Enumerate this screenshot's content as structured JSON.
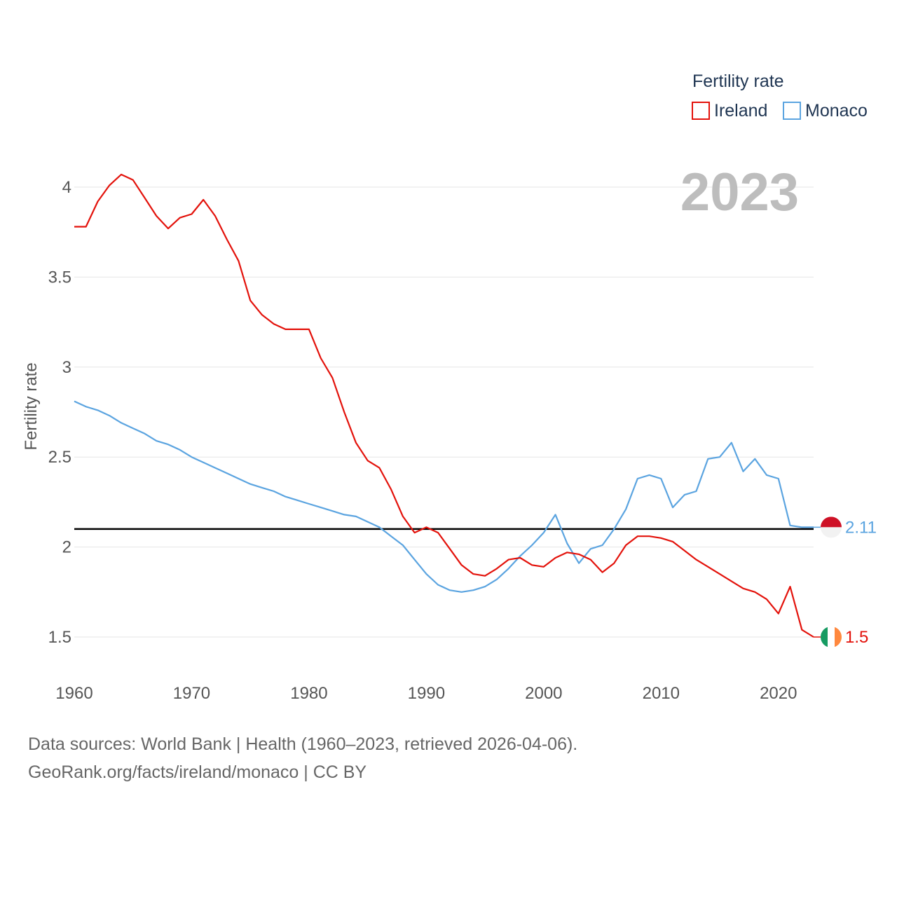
{
  "chart_data": {
    "type": "line",
    "title": "Fertility rate",
    "year_label": "2023",
    "ylabel": "Fertility rate",
    "xlabel": "",
    "xlim": [
      1960,
      2023
    ],
    "ylim": [
      1.35,
      4.2
    ],
    "x_ticks": [
      1960,
      1970,
      1980,
      1990,
      2000,
      2010,
      2020
    ],
    "y_ticks": [
      1.5,
      2,
      2.5,
      3,
      3.5,
      4
    ],
    "y_tick_labels": [
      "1.5",
      "2",
      "2.5",
      "3",
      "3.5",
      "4"
    ],
    "grid": true,
    "legend_position": "top-right",
    "reference_line": {
      "value": 2.1,
      "color": "#000000"
    },
    "x": [
      1960,
      1961,
      1962,
      1963,
      1964,
      1965,
      1966,
      1967,
      1968,
      1969,
      1970,
      1971,
      1972,
      1973,
      1974,
      1975,
      1976,
      1977,
      1978,
      1979,
      1980,
      1981,
      1982,
      1983,
      1984,
      1985,
      1986,
      1987,
      1988,
      1989,
      1990,
      1991,
      1992,
      1993,
      1994,
      1995,
      1996,
      1997,
      1998,
      1999,
      2000,
      2001,
      2002,
      2003,
      2004,
      2005,
      2006,
      2007,
      2008,
      2009,
      2010,
      2011,
      2012,
      2013,
      2014,
      2015,
      2016,
      2017,
      2018,
      2019,
      2020,
      2021,
      2022,
      2023
    ],
    "series": [
      {
        "name": "Ireland",
        "color": "#e3120b",
        "end_label": "1.5",
        "flag": "ireland-flag",
        "values": [
          3.78,
          3.78,
          3.92,
          4.01,
          4.07,
          4.04,
          3.94,
          3.84,
          3.77,
          3.83,
          3.85,
          3.93,
          3.84,
          3.71,
          3.59,
          3.37,
          3.29,
          3.24,
          3.21,
          3.21,
          3.21,
          3.05,
          2.94,
          2.75,
          2.58,
          2.48,
          2.44,
          2.32,
          2.17,
          2.08,
          2.11,
          2.08,
          1.99,
          1.9,
          1.85,
          1.84,
          1.88,
          1.93,
          1.94,
          1.9,
          1.89,
          1.94,
          1.97,
          1.96,
          1.93,
          1.86,
          1.91,
          2.01,
          2.06,
          2.06,
          2.05,
          2.03,
          1.98,
          1.93,
          1.89,
          1.85,
          1.81,
          1.77,
          1.75,
          1.71,
          1.63,
          1.78,
          1.54,
          1.5
        ]
      },
      {
        "name": "Monaco",
        "color": "#5ba4e0",
        "end_label": "2.11",
        "flag": "monaco-flag",
        "values": [
          2.81,
          2.78,
          2.76,
          2.73,
          2.69,
          2.66,
          2.63,
          2.59,
          2.57,
          2.54,
          2.5,
          2.47,
          2.44,
          2.41,
          2.38,
          2.35,
          2.33,
          2.31,
          2.28,
          2.26,
          2.24,
          2.22,
          2.2,
          2.18,
          2.17,
          2.14,
          2.11,
          2.06,
          2.01,
          1.93,
          1.85,
          1.79,
          1.76,
          1.75,
          1.76,
          1.78,
          1.82,
          1.88,
          1.95,
          2.01,
          2.08,
          2.18,
          2.02,
          1.91,
          1.99,
          2.01,
          2.1,
          2.21,
          2.38,
          2.4,
          2.38,
          2.22,
          2.29,
          2.31,
          2.49,
          2.5,
          2.58,
          2.42,
          2.49,
          2.4,
          2.38,
          2.12,
          2.11,
          2.11
        ]
      }
    ]
  },
  "footer": {
    "line1": "Data sources: World Bank | Health (1960–2023, retrieved 2026-04-06).",
    "line2": "GeoRank.org/facts/ireland/monaco | CC BY"
  }
}
